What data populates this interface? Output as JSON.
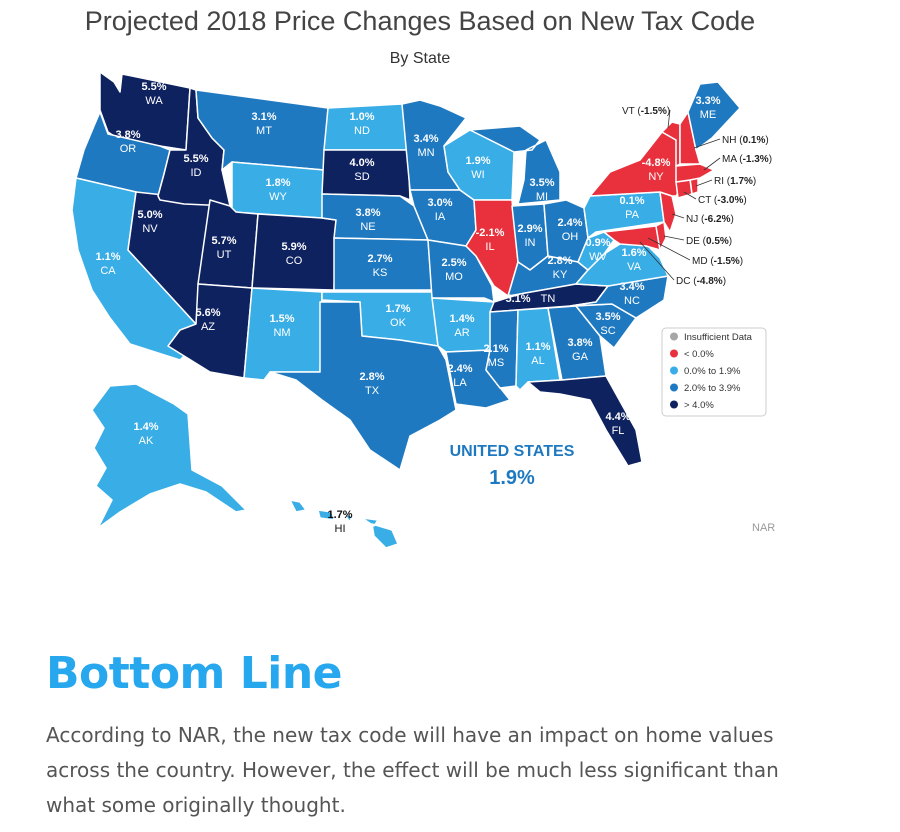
{
  "header": {
    "title": "Projected 2018 Price Changes Based on New Tax Code",
    "subtitle": "By State"
  },
  "colors": {
    "negative": "#e8313d",
    "low": "#38ade6",
    "mid": "#1f79c0",
    "high": "#0f2260",
    "insufficient": "#a6a6a6"
  },
  "legend": {
    "items": [
      {
        "label": "Insufficient Data",
        "color": "#a6a6a6"
      },
      {
        "label": "< 0.0%",
        "color": "#e8313d"
      },
      {
        "label": "0.0% to 1.9%",
        "color": "#38ade6"
      },
      {
        "label": "2.0% to 3.9%",
        "color": "#1f79c0"
      },
      {
        "label": "> 4.0%",
        "color": "#0f2260"
      }
    ]
  },
  "states": [
    {
      "abbr": "WA",
      "value": "5.5%",
      "band": "high"
    },
    {
      "abbr": "OR",
      "value": "3.8%",
      "band": "mid"
    },
    {
      "abbr": "CA",
      "value": "1.1%",
      "band": "low"
    },
    {
      "abbr": "NV",
      "value": "5.0%",
      "band": "high"
    },
    {
      "abbr": "ID",
      "value": "5.5%",
      "band": "high"
    },
    {
      "abbr": "MT",
      "value": "3.1%",
      "band": "mid"
    },
    {
      "abbr": "WY",
      "value": "1.8%",
      "band": "low"
    },
    {
      "abbr": "UT",
      "value": "5.7%",
      "band": "high"
    },
    {
      "abbr": "AZ",
      "value": "5.6%",
      "band": "high"
    },
    {
      "abbr": "CO",
      "value": "5.9%",
      "band": "high"
    },
    {
      "abbr": "NM",
      "value": "1.5%",
      "band": "low"
    },
    {
      "abbr": "ND",
      "value": "1.0%",
      "band": "low"
    },
    {
      "abbr": "SD",
      "value": "4.0%",
      "band": "high"
    },
    {
      "abbr": "NE",
      "value": "3.8%",
      "band": "mid"
    },
    {
      "abbr": "KS",
      "value": "2.7%",
      "band": "mid"
    },
    {
      "abbr": "OK",
      "value": "1.7%",
      "band": "low"
    },
    {
      "abbr": "TX",
      "value": "2.8%",
      "band": "mid"
    },
    {
      "abbr": "MN",
      "value": "3.4%",
      "band": "mid"
    },
    {
      "abbr": "IA",
      "value": "3.0%",
      "band": "mid"
    },
    {
      "abbr": "MO",
      "value": "2.5%",
      "band": "mid"
    },
    {
      "abbr": "AR",
      "value": "1.4%",
      "band": "low"
    },
    {
      "abbr": "LA",
      "value": "2.4%",
      "band": "mid"
    },
    {
      "abbr": "WI",
      "value": "1.9%",
      "band": "low"
    },
    {
      "abbr": "IL",
      "value": "-2.1%",
      "band": "negative"
    },
    {
      "abbr": "MI",
      "value": "3.5%",
      "band": "mid"
    },
    {
      "abbr": "IN",
      "value": "2.9%",
      "band": "mid"
    },
    {
      "abbr": "OH",
      "value": "2.4%",
      "band": "mid"
    },
    {
      "abbr": "KY",
      "value": "2.8%",
      "band": "mid"
    },
    {
      "abbr": "TN",
      "value": "5.1%",
      "band": "high"
    },
    {
      "abbr": "MS",
      "value": "2.1%",
      "band": "mid"
    },
    {
      "abbr": "AL",
      "value": "1.1%",
      "band": "low"
    },
    {
      "abbr": "GA",
      "value": "3.8%",
      "band": "mid"
    },
    {
      "abbr": "FL",
      "value": "4.4%",
      "band": "high"
    },
    {
      "abbr": "SC",
      "value": "3.5%",
      "band": "mid"
    },
    {
      "abbr": "NC",
      "value": "3.4%",
      "band": "mid"
    },
    {
      "abbr": "VA",
      "value": "1.6%",
      "band": "low"
    },
    {
      "abbr": "WV",
      "value": "0.9%",
      "band": "low"
    },
    {
      "abbr": "PA",
      "value": "0.1%",
      "band": "low"
    },
    {
      "abbr": "NY",
      "value": "-4.8%",
      "band": "negative"
    },
    {
      "abbr": "ME",
      "value": "3.3%",
      "band": "mid"
    },
    {
      "abbr": "AK",
      "value": "1.4%",
      "band": "low"
    },
    {
      "abbr": "HI",
      "value": "1.7%",
      "band": "low"
    }
  ],
  "callouts": [
    {
      "abbr": "VT",
      "value": "-1.5%"
    },
    {
      "abbr": "NH",
      "value": "0.1%"
    },
    {
      "abbr": "MA",
      "value": "-1.3%"
    },
    {
      "abbr": "RI",
      "value": "1.7%"
    },
    {
      "abbr": "CT",
      "value": "-3.0%"
    },
    {
      "abbr": "NJ",
      "value": "-6.2%"
    },
    {
      "abbr": "DE",
      "value": "0.5%"
    },
    {
      "abbr": "MD",
      "value": "-1.5%"
    },
    {
      "abbr": "DC",
      "value": "-4.8%"
    }
  ],
  "national": {
    "label": "UNITED STATES",
    "value": "1.9%"
  },
  "source": "NAR",
  "bottom_line": {
    "heading": "Bottom Line",
    "text": "According to NAR, the new tax code will have an impact on home values across the country. However, the effect will be much less significant than what some originally thought."
  }
}
